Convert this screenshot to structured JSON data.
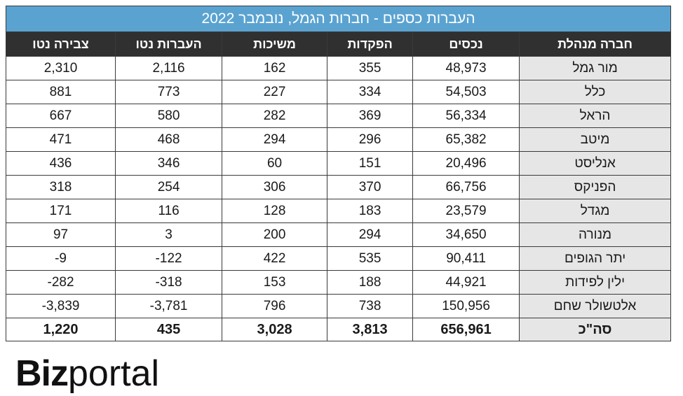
{
  "table": {
    "title": "העברות כספים - חברות הגמל, נובמבר 2022",
    "headers": [
      "חברה מנהלת",
      "נכסים",
      "הפקדות",
      "משיכות",
      "העברות נטו",
      "צבירה נטו"
    ],
    "rows": [
      [
        "מור גמל",
        "48,973",
        "355",
        "162",
        "2,116",
        "2,310"
      ],
      [
        "כלל",
        "54,503",
        "334",
        "227",
        "773",
        "881"
      ],
      [
        "הראל",
        "56,334",
        "369",
        "282",
        "580",
        "667"
      ],
      [
        "מיטב",
        "65,382",
        "296",
        "294",
        "468",
        "471"
      ],
      [
        "אנליסט",
        "20,496",
        "151",
        "60",
        "346",
        "436"
      ],
      [
        "הפניקס",
        "66,756",
        "370",
        "306",
        "254",
        "318"
      ],
      [
        "מגדל",
        "23,579",
        "183",
        "128",
        "116",
        "171"
      ],
      [
        "מנורה",
        "34,650",
        "294",
        "200",
        "3",
        "97"
      ],
      [
        "יתר הגופים",
        "90,411",
        "535",
        "422",
        "-122",
        "-9"
      ],
      [
        "ילין לפידות",
        "44,921",
        "188",
        "153",
        "-318",
        "-282"
      ],
      [
        "אלטשולר שחם",
        "150,956",
        "738",
        "796",
        "-3,781",
        "-3,839"
      ]
    ],
    "total": [
      "סה\"כ",
      "656,961",
      "3,813",
      "3,028",
      "435",
      "1,220"
    ]
  },
  "logo": {
    "part1": "Biz",
    "part2": "portal"
  },
  "colors": {
    "title_bg": "#5aa3d1",
    "header_bg": "#303030",
    "company_bg": "#e6e6e6"
  }
}
